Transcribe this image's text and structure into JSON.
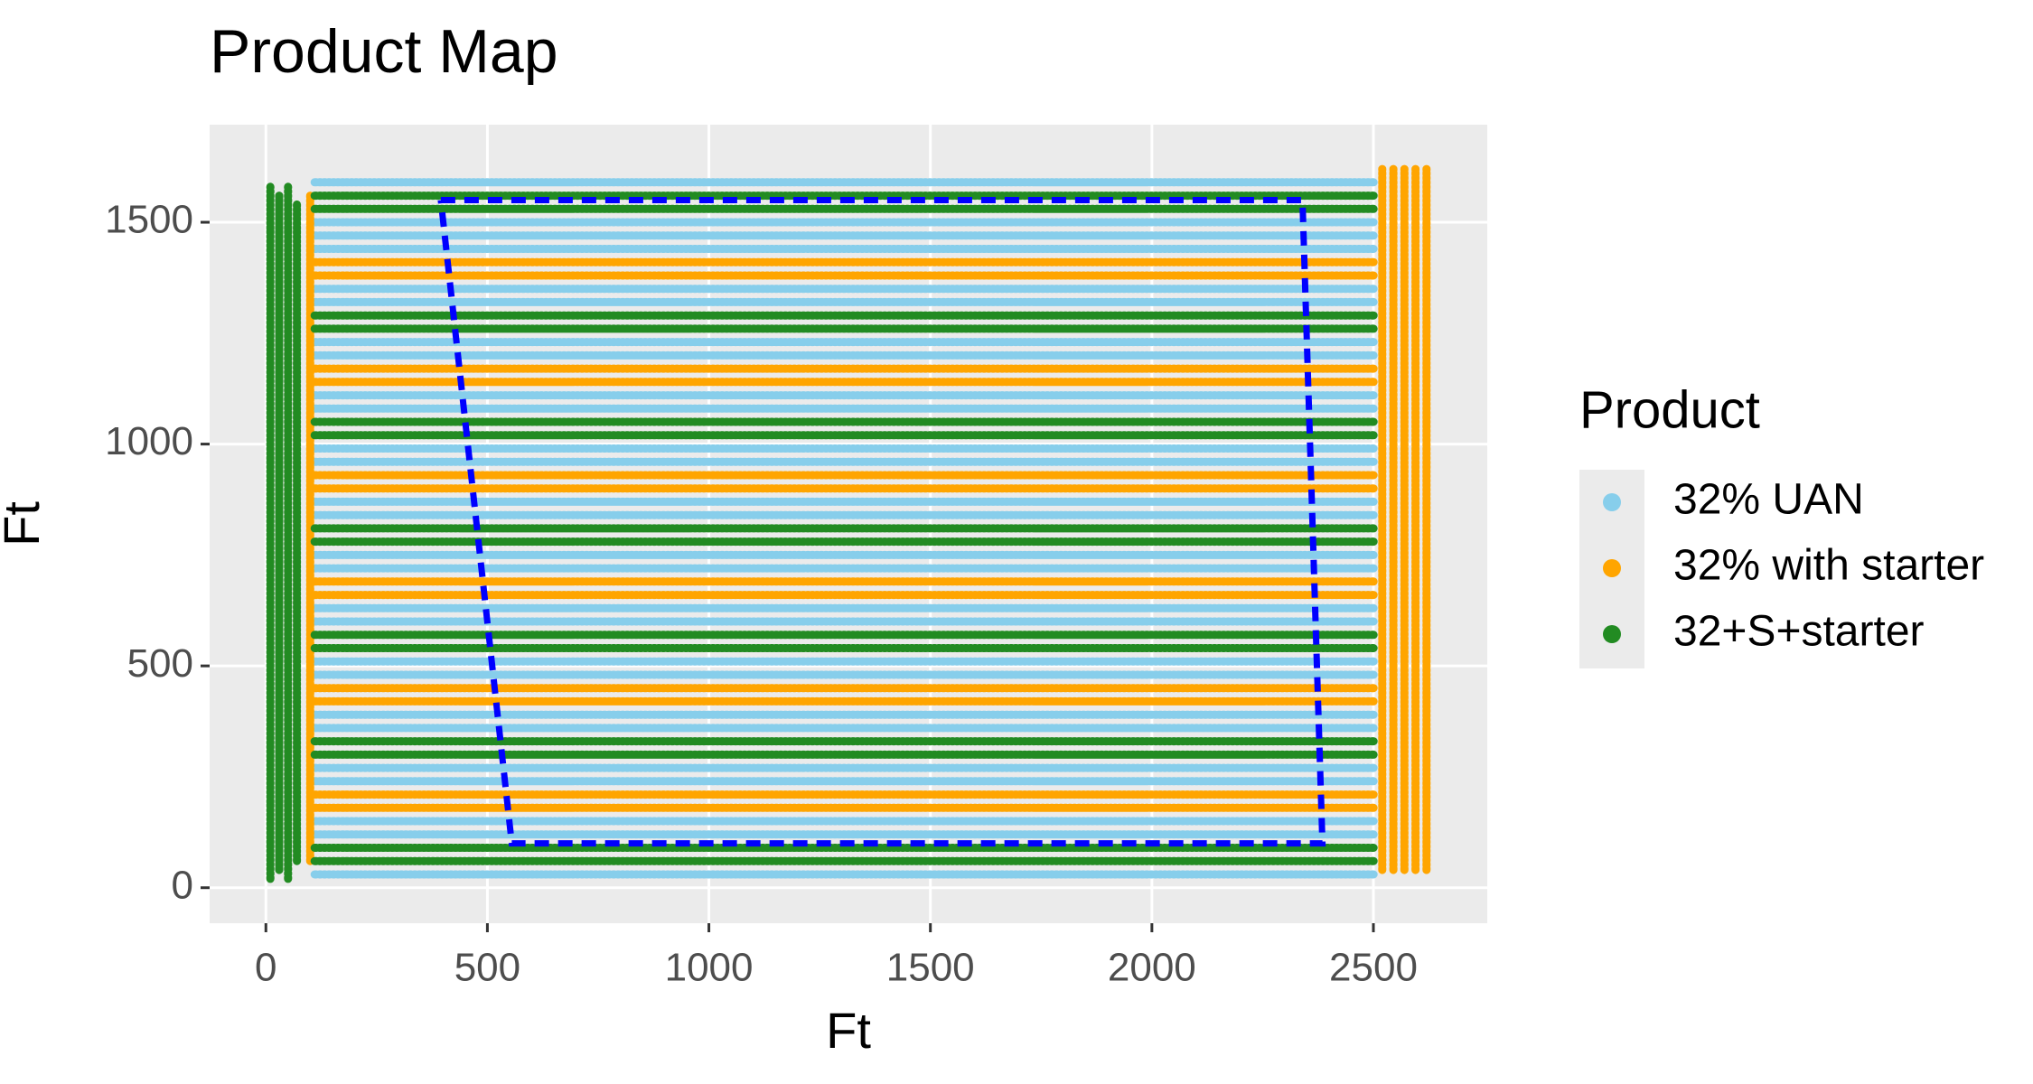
{
  "chart_data": {
    "type": "line",
    "title": "Product Map",
    "x_label": "Ft",
    "y_label": "Ft",
    "xlim": [
      -127,
      2757
    ],
    "ylim": [
      -80,
      1720
    ],
    "xticks": [
      0,
      500,
      1000,
      1500,
      2000,
      2500
    ],
    "yticks": [
      0,
      500,
      1000,
      1500
    ],
    "grid": true,
    "legend_title": "Product",
    "legend_position": "right",
    "series": [
      {
        "name": "32% UAN",
        "color": "#87ceeb",
        "x": [
          110,
          2505,
          null,
          110,
          2505,
          null,
          110,
          2505,
          null,
          110,
          2505,
          null,
          110,
          2505,
          null,
          110,
          2505,
          null,
          110,
          2505,
          null,
          110,
          2505,
          null,
          110,
          2505,
          null,
          110,
          2505,
          null,
          110,
          2505,
          null,
          110,
          2505,
          null,
          110,
          2505,
          null,
          110,
          2505,
          null,
          110,
          2505,
          null,
          110,
          2505,
          null,
          110,
          2505,
          null,
          110,
          2505,
          null,
          110,
          2505,
          null,
          110,
          2505,
          null,
          110,
          2505,
          null,
          110,
          2505,
          null,
          110,
          2505,
          null,
          110,
          2505,
          null,
          110,
          2505,
          null,
          110,
          2505,
          null,
          110,
          2505,
          null
        ],
        "y": [
          30,
          30,
          null,
          120,
          120,
          null,
          150,
          150,
          null,
          240,
          240,
          null,
          270,
          270,
          null,
          360,
          360,
          null,
          390,
          390,
          null,
          480,
          480,
          null,
          510,
          510,
          null,
          600,
          600,
          null,
          630,
          630,
          null,
          720,
          720,
          null,
          750,
          750,
          null,
          840,
          840,
          null,
          870,
          870,
          null,
          960,
          960,
          null,
          990,
          990,
          null,
          1080,
          1080,
          null,
          1110,
          1110,
          null,
          1200,
          1200,
          null,
          1230,
          1230,
          null,
          1320,
          1320,
          null,
          1350,
          1350,
          null,
          1440,
          1440,
          null,
          1470,
          1470,
          null,
          1500,
          1500,
          null,
          1590,
          1590,
          null
        ]
      },
      {
        "name": "32% with starter",
        "color": "#ffa500",
        "x": [
          100,
          100,
          null,
          2520,
          2520,
          null,
          2545,
          2545,
          null,
          2570,
          2570,
          null,
          2595,
          2595,
          null,
          2620,
          2620,
          null,
          110,
          2505,
          null,
          110,
          2505,
          null,
          110,
          2505,
          null,
          110,
          2505,
          null,
          110,
          2505,
          null,
          110,
          2505,
          null,
          110,
          2505,
          null,
          110,
          2505,
          null,
          110,
          2505,
          null,
          110,
          2505,
          null,
          110,
          2505,
          null,
          110,
          2505,
          null
        ],
        "y": [
          60,
          1560,
          null,
          40,
          1620,
          null,
          40,
          1620,
          null,
          40,
          1620,
          null,
          40,
          1620,
          null,
          40,
          1620,
          null,
          180,
          180,
          null,
          210,
          210,
          null,
          420,
          420,
          null,
          450,
          450,
          null,
          660,
          660,
          null,
          690,
          690,
          null,
          900,
          900,
          null,
          930,
          930,
          null,
          1140,
          1140,
          null,
          1170,
          1170,
          null,
          1380,
          1380,
          null,
          1410,
          1410,
          null
        ]
      },
      {
        "name": "32+S+starter",
        "color": "#228b22",
        "x": [
          10,
          10,
          null,
          30,
          30,
          null,
          50,
          50,
          null,
          70,
          70,
          null,
          110,
          2505,
          null,
          110,
          2505,
          null,
          110,
          2505,
          null,
          110,
          2505,
          null,
          110,
          2505,
          null,
          110,
          2505,
          null,
          110,
          2505,
          null,
          110,
          2505,
          null,
          110,
          2505,
          null,
          110,
          2505,
          null,
          110,
          2505,
          null,
          110,
          2505,
          null,
          110,
          2505,
          null,
          110,
          2505,
          null
        ],
        "y": [
          20,
          1580,
          null,
          40,
          1560,
          null,
          20,
          1580,
          null,
          60,
          1540,
          null,
          60,
          60,
          null,
          90,
          90,
          null,
          300,
          300,
          null,
          330,
          330,
          null,
          540,
          540,
          null,
          570,
          570,
          null,
          780,
          780,
          null,
          810,
          810,
          null,
          1020,
          1020,
          null,
          1050,
          1050,
          null,
          1260,
          1260,
          null,
          1290,
          1290,
          null,
          1530,
          1530,
          null,
          1560,
          1560,
          null
        ]
      }
    ],
    "boundary": {
      "color": "#0000ff",
      "linetype": "dashed",
      "x": [
        395,
        2340,
        2385,
        555,
        395
      ],
      "y": [
        1550,
        1550,
        100,
        100,
        1550
      ]
    }
  }
}
